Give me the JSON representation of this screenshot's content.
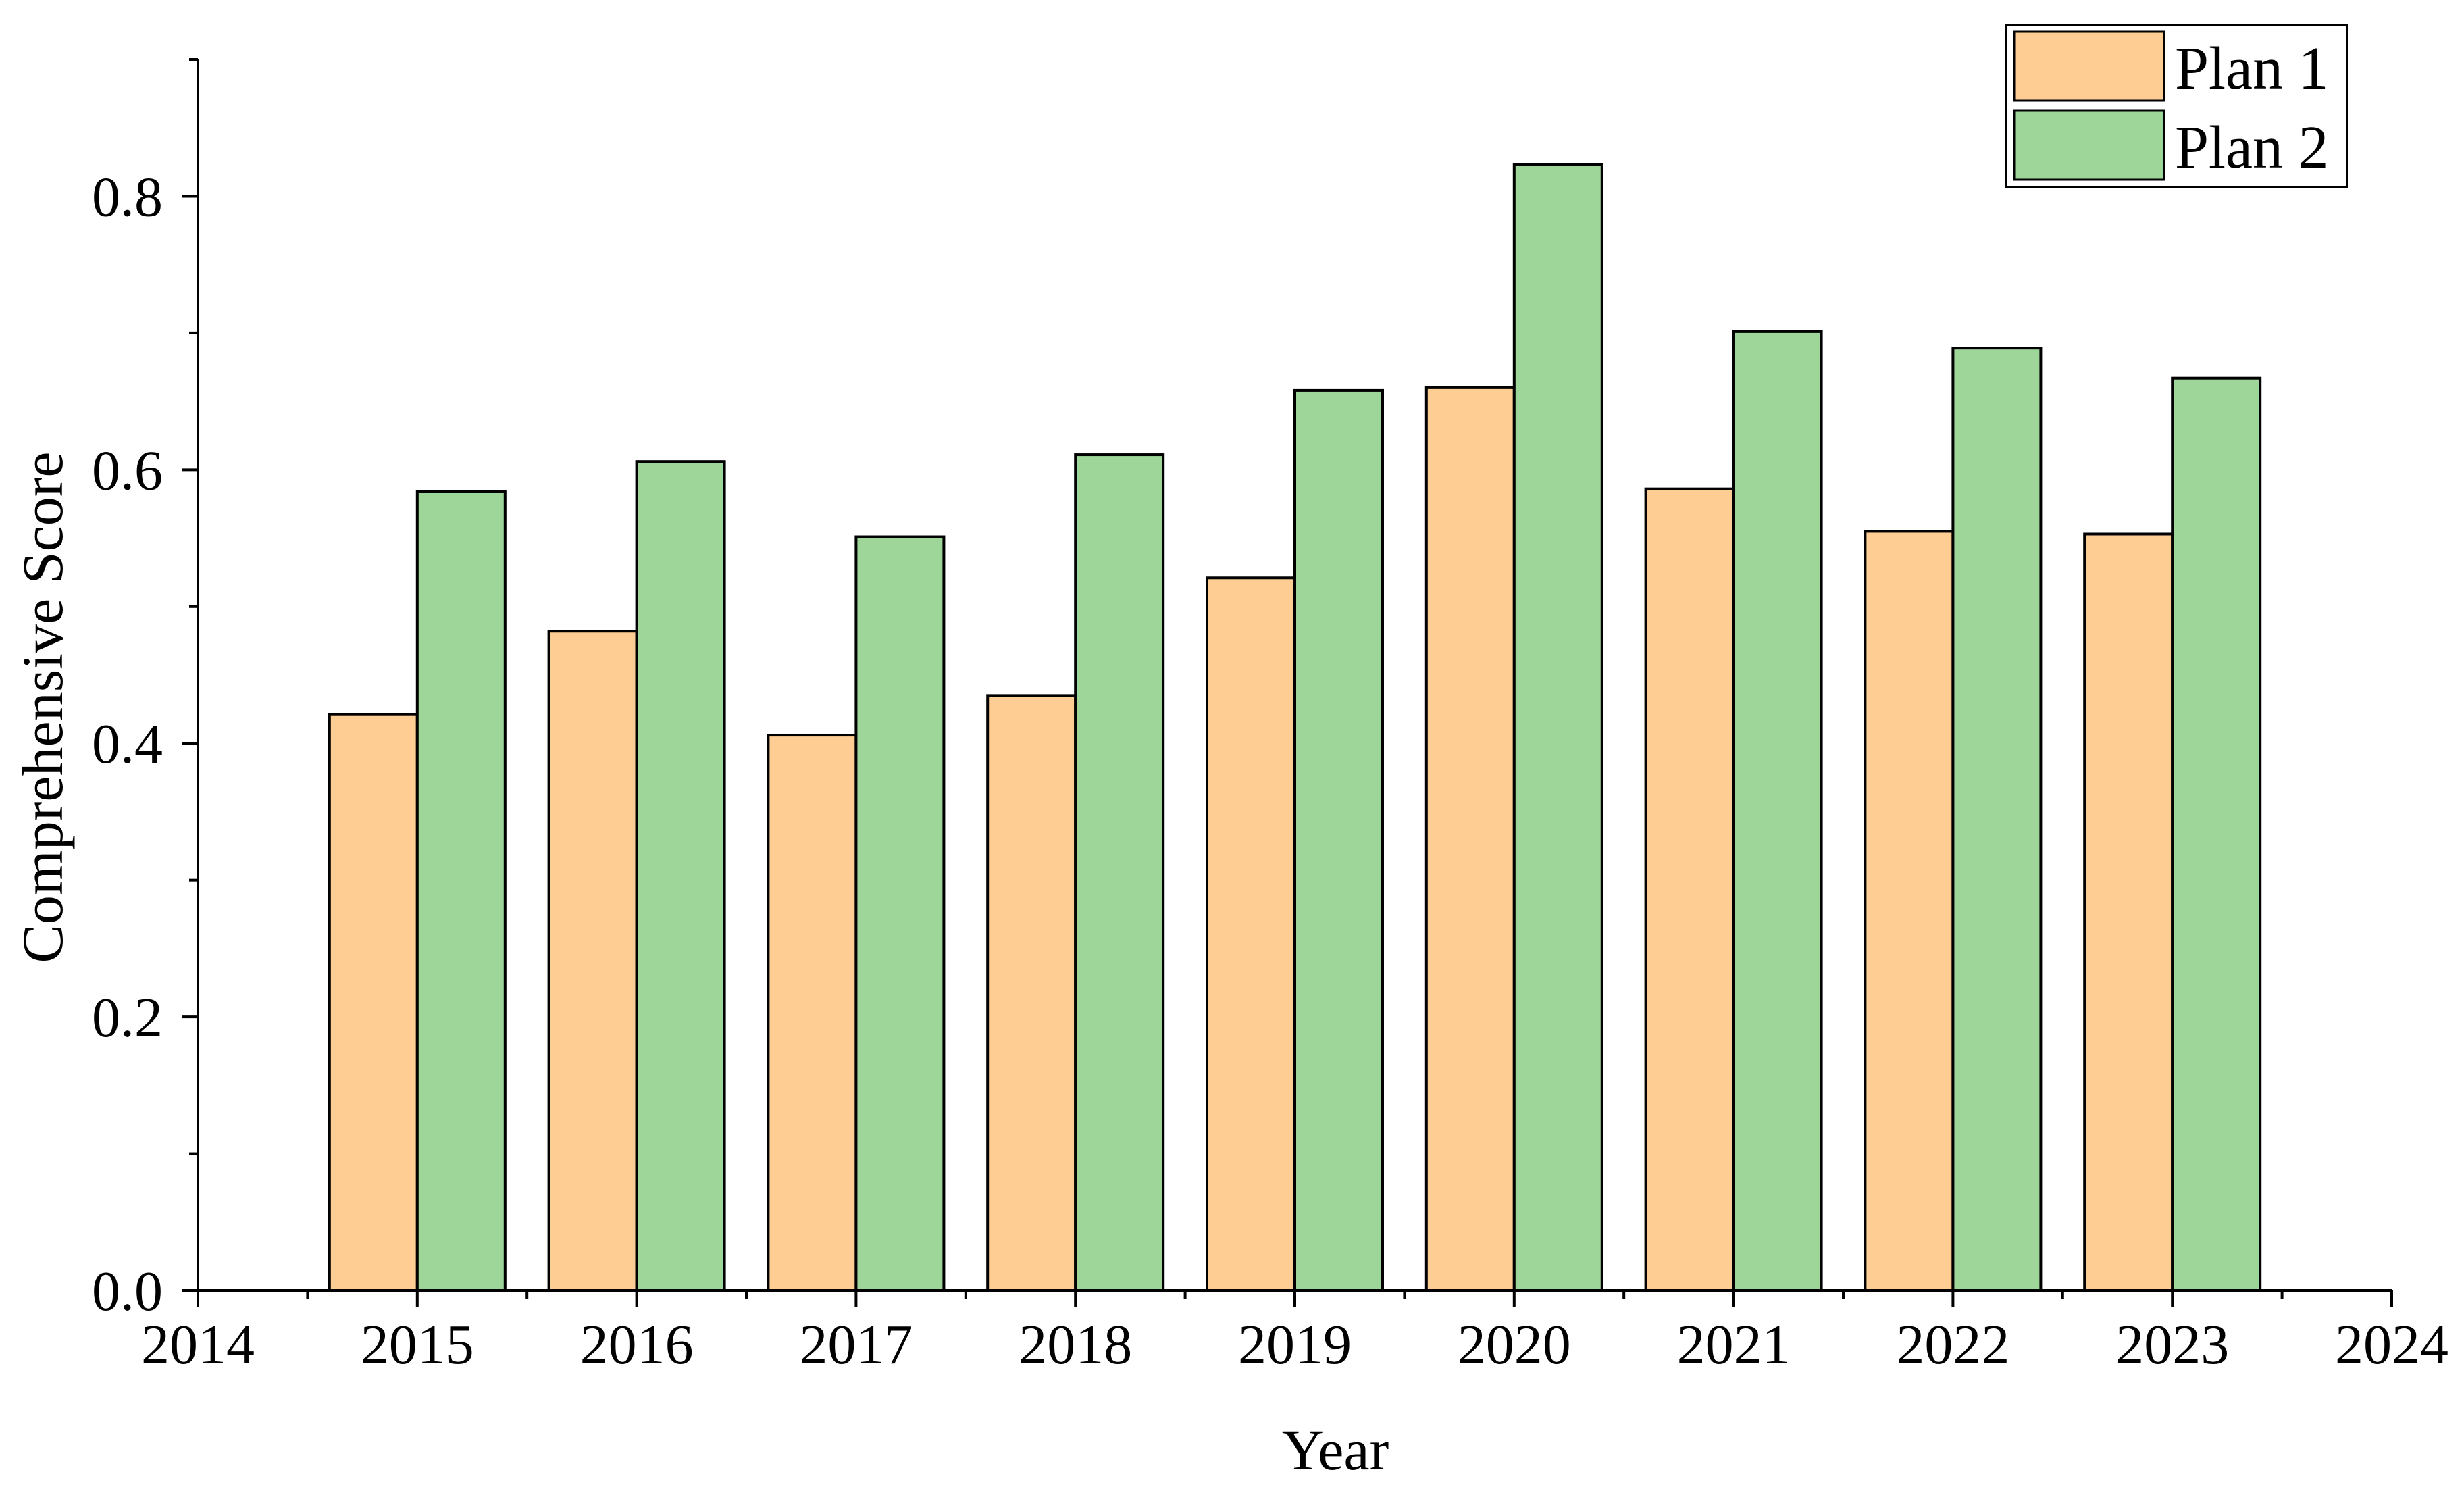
{
  "chart_data": {
    "type": "bar",
    "title": "",
    "xlabel": "Year",
    "ylabel": "Comprehensive Score",
    "categories": [
      2015,
      2016,
      2017,
      2018,
      2019,
      2020,
      2021,
      2022,
      2023
    ],
    "series": [
      {
        "name": "Plan 1",
        "color": "#FDCD93",
        "values": [
          0.421,
          0.482,
          0.406,
          0.435,
          0.521,
          0.66,
          0.586,
          0.555,
          0.553
        ]
      },
      {
        "name": "Plan 2",
        "color": "#9ED69A",
        "values": [
          0.584,
          0.606,
          0.551,
          0.611,
          0.658,
          0.823,
          0.701,
          0.689,
          0.667
        ]
      }
    ],
    "xlim": [
      2014,
      2024
    ],
    "ylim": [
      0,
      0.9
    ],
    "x_ticks": [
      "2014",
      "2015",
      "2016",
      "2017",
      "2018",
      "2019",
      "2020",
      "2021",
      "2022",
      "2023",
      "2024"
    ],
    "y_ticks": [
      "0.0",
      "0.2",
      "0.4",
      "0.6",
      "0.8"
    ],
    "grid": false,
    "legend_position": "top-right"
  }
}
